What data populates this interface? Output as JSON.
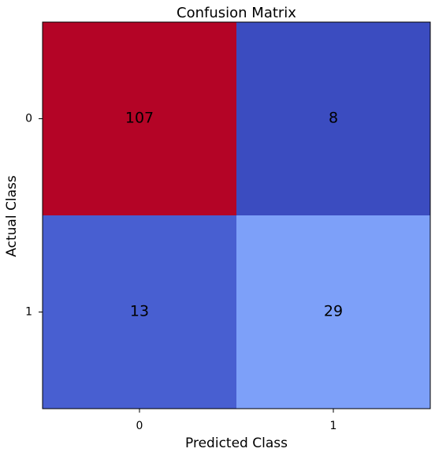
{
  "chart_data": {
    "type": "heatmap",
    "title": "Confusion Matrix",
    "xlabel": "Predicted Class",
    "ylabel": "Actual Class",
    "x_categories": [
      "0",
      "1"
    ],
    "y_categories": [
      "0",
      "1"
    ],
    "values": [
      [
        107,
        8
      ],
      [
        13,
        29
      ]
    ],
    "colormap": "coolwarm",
    "cell_colors": [
      [
        "#b40426",
        "#3b4cc0"
      ],
      [
        "#485fd1",
        "#7da0f9"
      ]
    ],
    "grid": false
  }
}
